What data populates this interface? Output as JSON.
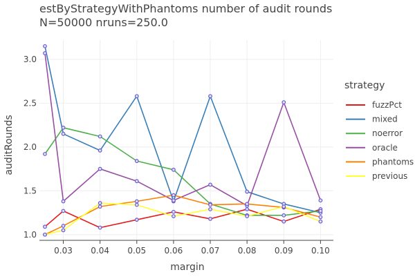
{
  "chart_data": {
    "type": "line",
    "title": "estByStrategyWithPhantoms number of audit rounds",
    "subtitle": "N=50000 nruns=250.0",
    "xlabel": "margin",
    "ylabel": "auditRounds",
    "xlim": [
      0.0235,
      0.1035
    ],
    "ylim": [
      0.935,
      3.22
    ],
    "x_ticks": [
      0.03,
      0.04,
      0.05,
      0.06,
      0.07,
      0.08,
      0.09,
      0.1
    ],
    "x_tick_labels": [
      "0.03",
      "0.04",
      "0.05",
      "0.06",
      "0.07",
      "0.08",
      "0.09",
      "0.10"
    ],
    "y_ticks": [
      1.0,
      1.5,
      2.0,
      2.5,
      3.0
    ],
    "y_tick_labels": [
      "1.0",
      "1.5",
      "2.0",
      "2.5",
      "3.0"
    ],
    "grid": true,
    "legend_title": "strategy",
    "legend_position": "right",
    "marker_color": "#6a5acd",
    "x": [
      0.025,
      0.03,
      0.04,
      0.05,
      0.06,
      0.07,
      0.08,
      0.09,
      0.1
    ],
    "series": [
      {
        "name": "fuzzPct",
        "color": "#e41a1c",
        "values": [
          1.09,
          1.27,
          1.08,
          1.17,
          1.26,
          1.18,
          1.29,
          1.15,
          1.29
        ]
      },
      {
        "name": "mixed",
        "color": "#377eb8",
        "values": [
          3.15,
          2.15,
          1.96,
          2.58,
          1.38,
          2.58,
          1.49,
          1.35,
          1.25
        ]
      },
      {
        "name": "noerror",
        "color": "#4daf4a",
        "values": [
          1.92,
          2.22,
          2.12,
          1.84,
          1.74,
          1.35,
          1.22,
          1.22,
          1.27
        ]
      },
      {
        "name": "oracle",
        "color": "#984ea3",
        "values": [
          3.07,
          1.38,
          1.75,
          1.61,
          1.39,
          1.57,
          1.33,
          2.51,
          1.39
        ]
      },
      {
        "name": "phantoms",
        "color": "#ff7f00",
        "values": [
          1.0,
          1.1,
          1.32,
          1.38,
          1.45,
          1.34,
          1.35,
          1.31,
          1.2
        ]
      },
      {
        "name": "previous",
        "color": "#ffff33",
        "values": [
          1.0,
          1.05,
          1.36,
          1.34,
          1.21,
          1.29,
          1.21,
          1.32,
          1.15
        ]
      }
    ]
  }
}
